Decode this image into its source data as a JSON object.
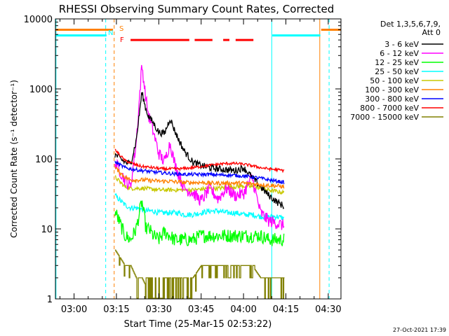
{
  "chart_data": {
    "type": "line",
    "title": "RHESSI Observing Summary Count Rates, Corrected",
    "xlabel": "Start Time (25-Mar-15 02:53:22)",
    "ylabel": "Corrected Count Rate (s⁻¹ detector⁻¹)",
    "yscale": "log",
    "ylim": [
      1,
      10000
    ],
    "xlim_minutes_after_0300": [
      -6.6,
      94.5
    ],
    "x_ticks": [
      {
        "label": "03:00",
        "t": 0
      },
      {
        "label": "03:15",
        "t": 15
      },
      {
        "label": "03:30",
        "t": 30
      },
      {
        "label": "03:45",
        "t": 45
      },
      {
        "label": "04:00",
        "t": 60
      },
      {
        "label": "04:15",
        "t": 75
      },
      {
        "label": "04:30",
        "t": 90
      }
    ],
    "y_ticks": [
      {
        "label": "1",
        "v": 1
      },
      {
        "label": "10",
        "v": 10
      },
      {
        "label": "100",
        "v": 100
      },
      {
        "label": "1000",
        "v": 1000
      },
      {
        "label": "10000",
        "v": 10000
      }
    ],
    "legend_header": [
      "Det 1,3,5,6,7,9,",
      "Att 0"
    ],
    "legend_position": "right",
    "flags": {
      "S": {
        "label": "S",
        "color": "#ff8000",
        "level": 7000,
        "segments": [
          [
            -6.6,
            13.8
          ],
          [
            87.5,
            94.5
          ]
        ]
      },
      "N": {
        "label": "N",
        "color": "#00ffff",
        "level": 5800,
        "segments": [
          [
            -6.6,
            11.5
          ],
          [
            70.2,
            87.2
          ]
        ]
      },
      "F": {
        "label": "F",
        "color": "#ff0000",
        "level": 5000,
        "segments": [
          [
            20.0,
            40.8
          ],
          [
            42.7,
            49.0
          ],
          [
            52.8,
            55.0
          ],
          [
            57.2,
            63.5
          ]
        ]
      }
    },
    "vlines": [
      {
        "t": -6.4,
        "color": "#00ffff",
        "style": "solid"
      },
      {
        "t": 11.2,
        "color": "#00ffff",
        "style": "dashed"
      },
      {
        "t": 14.2,
        "color": "#ff8000",
        "style": "dashed"
      },
      {
        "t": 70.0,
        "color": "#00ffff",
        "style": "solid"
      },
      {
        "t": 87.0,
        "color": "#ff8000",
        "style": "solid"
      },
      {
        "t": 90.3,
        "color": "#00ffff",
        "style": "dashed"
      }
    ],
    "x": [
      14.5,
      18,
      20,
      22,
      24,
      25.5,
      26.5,
      28,
      30,
      32,
      34,
      35.5,
      37,
      39,
      42,
      45,
      48,
      51,
      54,
      57,
      60,
      63,
      66,
      69,
      72,
      74.5
    ],
    "series": [
      {
        "name": "3 - 6 keV",
        "color": "#000000",
        "noise": 0.05,
        "values": [
          115,
          90,
          85,
          180,
          900,
          500,
          400,
          330,
          240,
          230,
          380,
          260,
          190,
          130,
          90,
          80,
          75,
          72,
          70,
          68,
          75,
          55,
          40,
          30,
          24,
          21
        ]
      },
      {
        "name": "6 - 12 keV",
        "color": "#ff00ff",
        "noise": 0.09,
        "values": [
          90,
          50,
          40,
          170,
          2200,
          700,
          400,
          250,
          120,
          90,
          170,
          90,
          60,
          38,
          33,
          25,
          38,
          27,
          38,
          30,
          32,
          55,
          17,
          13,
          12,
          11
        ]
      },
      {
        "name": "12 - 25 keV",
        "color": "#00ff00",
        "noise": 0.1,
        "values": [
          18,
          8,
          7,
          10,
          25,
          10,
          10,
          8,
          7,
          9,
          8,
          7,
          7,
          7,
          7,
          8,
          8,
          8,
          8,
          8,
          8,
          8,
          8,
          7,
          7,
          7
        ]
      },
      {
        "name": "25 - 50 keV",
        "color": "#00ffff",
        "noise": 0.04,
        "values": [
          30,
          22,
          20,
          20,
          19,
          18,
          18,
          18,
          17,
          17,
          17,
          17,
          17,
          16,
          16,
          17,
          18,
          18,
          17,
          17,
          16,
          16,
          15,
          15,
          15,
          14
        ]
      },
      {
        "name": "50 - 100 keV",
        "color": "#c8c800",
        "noise": 0.03,
        "values": [
          55,
          40,
          38,
          38,
          38,
          38,
          37,
          37,
          36,
          36,
          36,
          36,
          36,
          36,
          36,
          37,
          38,
          38,
          39,
          40,
          41,
          40,
          38,
          36,
          34,
          33
        ]
      },
      {
        "name": "100 - 300 keV",
        "color": "#ff8000",
        "noise": 0.03,
        "values": [
          75,
          55,
          50,
          50,
          50,
          50,
          49,
          49,
          48,
          48,
          48,
          47,
          47,
          46,
          46,
          46,
          45,
          45,
          45,
          45,
          45,
          44,
          43,
          42,
          41,
          40
        ]
      },
      {
        "name": "300 - 800 keV",
        "color": "#0000ff",
        "noise": 0.025,
        "values": [
          90,
          75,
          72,
          70,
          68,
          67,
          66,
          65,
          64,
          63,
          62,
          61,
          61,
          60,
          60,
          60,
          60,
          59,
          59,
          58,
          57,
          55,
          53,
          50,
          48,
          46
        ]
      },
      {
        "name": "800 - 7000 keV",
        "color": "#ff0000",
        "noise": 0.02,
        "values": [
          135,
          95,
          88,
          82,
          78,
          77,
          76,
          75,
          73,
          72,
          72,
          72,
          72,
          73,
          75,
          78,
          81,
          84,
          86,
          86,
          84,
          80,
          75,
          72,
          70,
          68
        ]
      },
      {
        "name": "7000 - 15000 keV",
        "color": "#808000",
        "noise": 0.0,
        "step": true,
        "values": [
          5,
          3,
          3,
          2,
          2,
          1.5,
          1.5,
          1.5,
          1.5,
          1.5,
          1.5,
          1.5,
          1.5,
          1.5,
          2,
          3,
          3,
          3,
          3,
          3,
          3,
          3,
          2,
          2,
          2,
          2
        ]
      }
    ]
  },
  "footer_date": "27-Oct-2021 17:39"
}
